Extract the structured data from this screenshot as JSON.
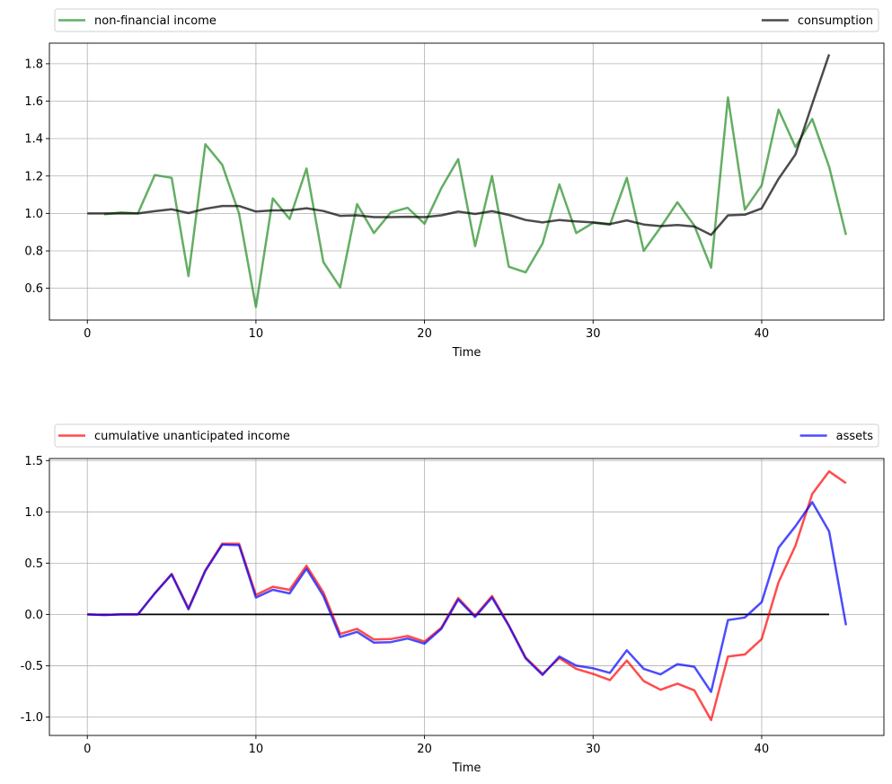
{
  "chart_data": [
    {
      "type": "line",
      "xlabel": "Time",
      "ylabel": "",
      "xlim": [
        -2.25,
        47.25
      ],
      "ylim": [
        0.43,
        1.91
      ],
      "xticks": [
        0,
        10,
        20,
        30,
        40
      ],
      "yticks": [
        0.6,
        0.8,
        1.0,
        1.2,
        1.4,
        1.6,
        1.8
      ],
      "grid": true,
      "legend_placement": "above plot, spread",
      "legend": [
        "non-financial income",
        "consumption"
      ],
      "series": [
        {
          "name": "non-financial income",
          "color": "#228b22",
          "x": [
            1,
            2,
            3,
            4,
            5,
            6,
            7,
            8,
            9,
            10,
            11,
            12,
            13,
            14,
            15,
            16,
            17,
            18,
            19,
            20,
            21,
            22,
            23,
            24,
            25,
            26,
            27,
            28,
            29,
            30,
            31,
            32,
            33,
            34,
            35,
            36,
            37,
            38,
            39,
            40,
            41,
            42,
            43,
            44,
            45
          ],
          "values": [
            0.995,
            1.005,
            1.0,
            1.205,
            1.19,
            0.665,
            1.37,
            1.26,
            1.0,
            0.5,
            1.08,
            0.97,
            1.24,
            0.74,
            0.605,
            1.05,
            0.895,
            1.005,
            1.03,
            0.945,
            1.135,
            1.29,
            0.825,
            1.2,
            0.715,
            0.685,
            0.84,
            1.155,
            0.895,
            0.95,
            0.94,
            1.19,
            0.8,
            0.925,
            1.06,
            0.935,
            0.71,
            1.62,
            1.02,
            1.15,
            1.555,
            1.355,
            1.505,
            1.25,
            0.885
          ]
        },
        {
          "name": "consumption",
          "color": "#000000",
          "x": [
            0,
            1,
            2,
            3,
            4,
            5,
            6,
            7,
            8,
            9,
            10,
            11,
            12,
            13,
            14,
            15,
            16,
            17,
            18,
            19,
            20,
            21,
            22,
            23,
            24,
            25,
            26,
            27,
            28,
            29,
            30,
            31,
            32,
            33,
            34,
            35,
            36,
            37,
            38,
            39,
            40,
            41,
            42,
            43,
            44
          ],
          "values": [
            1.0,
            1.0,
            1.0,
            1.0,
            1.012,
            1.022,
            1.002,
            1.025,
            1.04,
            1.04,
            1.01,
            1.016,
            1.016,
            1.028,
            1.013,
            0.987,
            0.99,
            0.98,
            0.98,
            0.982,
            0.98,
            0.99,
            1.01,
            0.997,
            1.012,
            0.992,
            0.965,
            0.952,
            0.965,
            0.957,
            0.952,
            0.943,
            0.963,
            0.941,
            0.932,
            0.938,
            0.93,
            0.885,
            0.99,
            0.993,
            1.027,
            1.185,
            1.315,
            1.585,
            1.85
          ]
        }
      ]
    },
    {
      "type": "line",
      "xlabel": "Time",
      "ylabel": "",
      "xlim": [
        -2.25,
        47.25
      ],
      "ylim": [
        -1.18,
        1.52
      ],
      "xticks": [
        0,
        10,
        20,
        30,
        40
      ],
      "yticks": [
        -1.0,
        -0.5,
        0.0,
        0.5,
        1.0,
        1.5
      ],
      "grid": true,
      "legend_placement": "above plot, spread",
      "legend": [
        "cumulative unanticipated income",
        "assets"
      ],
      "reference_line": {
        "y": 0,
        "x_range": [
          0,
          44
        ],
        "color": "#000000"
      },
      "series": [
        {
          "name": "cumulative unanticipated income",
          "color": "#ff0000",
          "x": [
            0,
            1,
            2,
            3,
            4,
            5,
            6,
            7,
            8,
            9,
            10,
            11,
            12,
            13,
            14,
            15,
            16,
            17,
            18,
            19,
            20,
            21,
            22,
            23,
            24,
            25,
            26,
            27,
            28,
            29,
            30,
            31,
            32,
            33,
            34,
            35,
            36,
            37,
            38,
            39,
            40,
            41,
            42,
            43,
            44,
            45
          ],
          "values": [
            0.0,
            -0.005,
            0.0,
            0.0,
            0.205,
            0.395,
            0.06,
            0.43,
            0.69,
            0.69,
            0.19,
            0.27,
            0.24,
            0.475,
            0.215,
            -0.19,
            -0.14,
            -0.245,
            -0.24,
            -0.21,
            -0.265,
            -0.13,
            0.16,
            -0.015,
            0.18,
            -0.105,
            -0.42,
            -0.58,
            -0.425,
            -0.53,
            -0.58,
            -0.64,
            -0.45,
            -0.65,
            -0.735,
            -0.675,
            -0.74,
            -1.03,
            -0.41,
            -0.39,
            -0.24,
            0.315,
            0.67,
            1.175,
            1.395,
            1.28
          ]
        },
        {
          "name": "assets",
          "color": "#0000ff",
          "x": [
            0,
            1,
            2,
            3,
            4,
            5,
            6,
            7,
            8,
            9,
            10,
            11,
            12,
            13,
            14,
            15,
            16,
            17,
            18,
            19,
            20,
            21,
            22,
            23,
            24,
            25,
            26,
            27,
            28,
            29,
            30,
            31,
            32,
            33,
            34,
            35,
            36,
            37,
            38,
            39,
            40,
            41,
            42,
            43,
            44,
            45
          ],
          "values": [
            0.0,
            -0.005,
            0.0,
            0.0,
            0.205,
            0.39,
            0.05,
            0.425,
            0.68,
            0.675,
            0.165,
            0.24,
            0.205,
            0.445,
            0.18,
            -0.22,
            -0.17,
            -0.275,
            -0.27,
            -0.235,
            -0.285,
            -0.14,
            0.145,
            -0.025,
            0.165,
            -0.11,
            -0.43,
            -0.59,
            -0.41,
            -0.5,
            -0.525,
            -0.57,
            -0.35,
            -0.53,
            -0.585,
            -0.485,
            -0.51,
            -0.755,
            -0.055,
            -0.03,
            0.12,
            0.65,
            0.86,
            1.095,
            0.81,
            -0.105
          ]
        }
      ]
    }
  ]
}
